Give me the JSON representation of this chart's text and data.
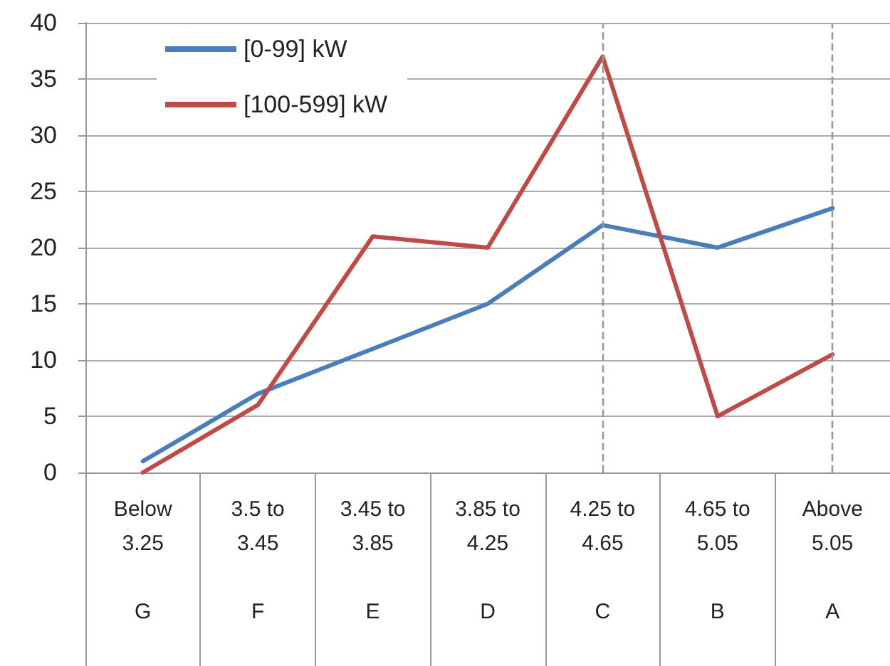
{
  "chart_data": {
    "type": "line",
    "categories": [
      "Below\n3.25\n\nG",
      "3.5 to\n3.45\n\nF",
      "3.45 to\n3.85\n\nE",
      "3.85 to\n4.25\n\nD",
      "4.25 to\n4.65\n\nC",
      "4.65 to\n5.05\n\nB",
      "Above\n5.05\n\nA"
    ],
    "series": [
      {
        "name": "[0-99] kW",
        "color": "#4a7ebb",
        "values": [
          1,
          7,
          11,
          15,
          22,
          20,
          23.5
        ]
      },
      {
        "name": "[100-599] kW",
        "color": "#be4b48",
        "values": [
          0,
          6,
          21,
          20,
          37,
          5,
          10.5
        ]
      }
    ],
    "ylim": [
      0,
      40
    ],
    "yticks": [
      0,
      5,
      10,
      15,
      20,
      25,
      30,
      35,
      40
    ],
    "ref_lines": [
      {
        "axis": "x",
        "value": "4.25 to\n4.65\n\nC",
        "color": "#999999",
        "line_style": "dashed"
      },
      {
        "axis": "x",
        "value": "Above\n5.05\n\nA",
        "color": "#999999",
        "line_style": "dashed"
      }
    ],
    "grid": "y",
    "legend": "top left",
    "marker": "none",
    "line_style": "solid"
  }
}
